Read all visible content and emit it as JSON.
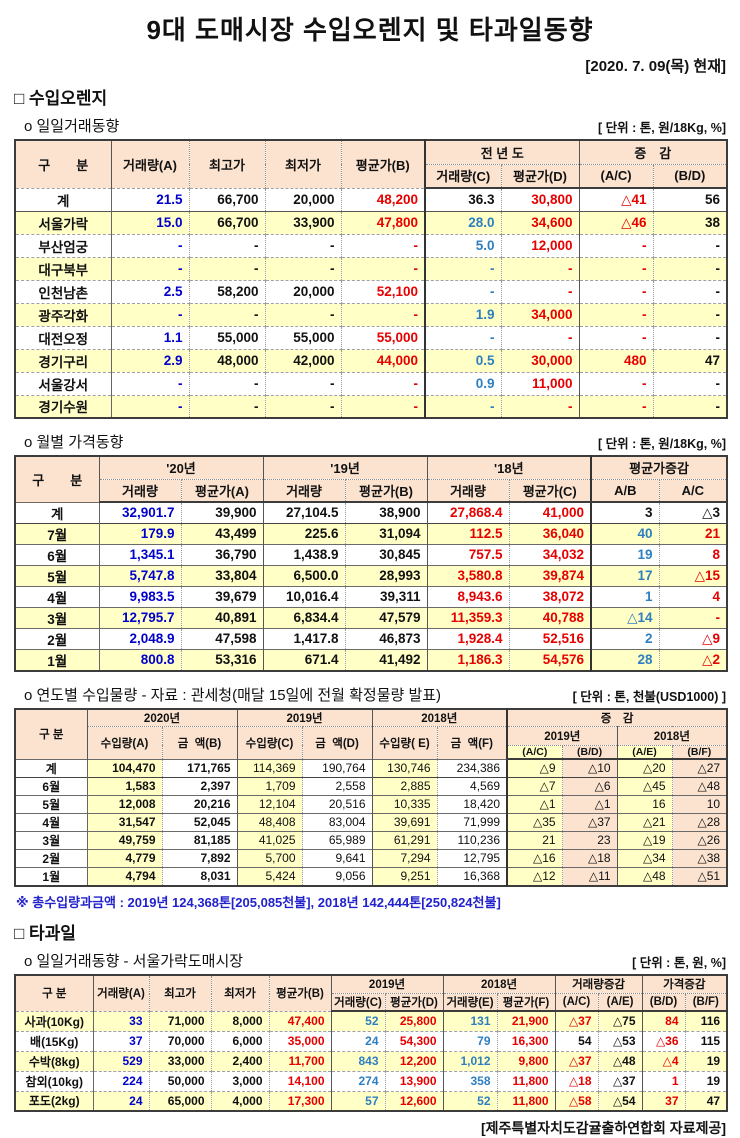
{
  "palette": {
    "blue": "#0000cc",
    "lightblue": "#2e7fc1",
    "red": "#e60000",
    "black": "#111111",
    "note_blue": "#2222cc",
    "header_bg": "#fbe3d0",
    "stripe_bg": "#ffffc6",
    "yellow_bg": "#ffffc6",
    "peach_bg": "#fbe3d0",
    "white_bg": "#ffffff"
  },
  "header": {
    "title": "9대 도매시장 수입오렌지 및 타과일동향",
    "date": "[2020. 7. 09(목) 현재]"
  },
  "sections": {
    "orange_heading": "□ 수입오렌지",
    "daily_label": "o  일일거래동향",
    "daily_unit": "[ 단위 : 톤, 원/18Kg, %]",
    "monthly_label": "o  월별 가격동향",
    "monthly_unit": "[ 단위 : 톤, 원/18Kg, %]",
    "yearly_label": "o  연도별 수입물량 - 자료 : 관세청(매달 15일에 전월 확정물량 발표)",
    "yearly_unit": "[ 단위 : 톤, 천불(USD1000) ]",
    "total_note": "※ 총수입량과금액 : 2019년 124,368톤[205,085천불],  2018년 142,444톤[250,824천불]",
    "fruit_heading": "□ 타과일",
    "fruit_daily_label": "o  일일거래동향 - 서울가락도매시장",
    "fruit_daily_unit": "[ 단위 : 톤, 원, %]",
    "footer": "[제주특별자치도감귤출하연합회 자료제공]"
  },
  "tables": {
    "daily": {
      "headers": {
        "gubun": "구　　분",
        "vol_a": "거래량(A)",
        "high": "최고가",
        "low": "최저가",
        "avg_b": "평균가(B)",
        "prev_year": "전 년 도",
        "vol_c": "거래량(C)",
        "avg_d": "평균가(D)",
        "change": "증　감",
        "ac": "(A/C)",
        "bd": "(B/D)"
      },
      "col_colors": [
        "blue",
        "black",
        "black",
        "red",
        "lightblue",
        "red",
        "red",
        "black"
      ],
      "rows": [
        {
          "label": "계",
          "cells": [
            "21.5",
            "66,700",
            "20,000",
            "48,200",
            "36.3",
            "30,800",
            "△41",
            "56"
          ],
          "color_overrides": {
            "4": "black"
          }
        },
        {
          "label": "서울가락",
          "cells": [
            "15.0",
            "66,700",
            "33,900",
            "47,800",
            "28.0",
            "34,600",
            "△46",
            "38"
          ]
        },
        {
          "label": "부산엄궁",
          "cells": [
            "-",
            "-",
            "-",
            "-",
            "5.0",
            "12,000",
            "-",
            "-"
          ]
        },
        {
          "label": "대구북부",
          "cells": [
            "-",
            "-",
            "-",
            "-",
            "-",
            "-",
            "-",
            "-"
          ]
        },
        {
          "label": "인천남촌",
          "cells": [
            "2.5",
            "58,200",
            "20,000",
            "52,100",
            "-",
            "-",
            "-",
            "-"
          ]
        },
        {
          "label": "광주각화",
          "cells": [
            "-",
            "-",
            "-",
            "-",
            "1.9",
            "34,000",
            "-",
            "-"
          ]
        },
        {
          "label": "대전오정",
          "cells": [
            "1.1",
            "55,000",
            "55,000",
            "55,000",
            "-",
            "-",
            "-",
            "-"
          ]
        },
        {
          "label": "경기구리",
          "cells": [
            "2.9",
            "48,000",
            "42,000",
            "44,000",
            "0.5",
            "30,000",
            "480",
            "47"
          ]
        },
        {
          "label": "서울강서",
          "cells": [
            "-",
            "-",
            "-",
            "-",
            "0.9",
            "11,000",
            "-",
            "-"
          ]
        },
        {
          "label": "경기수원",
          "cells": [
            "-",
            "-",
            "-",
            "-",
            "-",
            "-",
            "-",
            "-"
          ]
        }
      ]
    },
    "monthly": {
      "headers": {
        "gubun": "구　　분",
        "y20": "'20년",
        "y19": "'19년",
        "y18": "'18년",
        "avg_change": "평균가증감",
        "vol20": "거래량",
        "avg_a": "평균가(A)",
        "vol19": "거래량",
        "avg_b": "평균가(B)",
        "vol18": "거래량",
        "avg_c": "평균가(C)",
        "ab": "A/B",
        "ac": "A/C"
      },
      "col_colors": [
        "blue",
        "black",
        "black",
        "black",
        "red",
        "red",
        "lightblue",
        "red"
      ],
      "rows": [
        {
          "label": "계",
          "cells": [
            "32,901.7",
            "39,900",
            "27,104.5",
            "38,900",
            "27,868.4",
            "41,000",
            "3",
            "△3"
          ],
          "color_overrides": {
            "6": "black",
            "7": "black"
          }
        },
        {
          "label": "7월",
          "cells": [
            "179.9",
            "43,499",
            "225.6",
            "31,094",
            "112.5",
            "36,040",
            "40",
            "21"
          ]
        },
        {
          "label": "6월",
          "cells": [
            "1,345.1",
            "36,790",
            "1,438.9",
            "30,845",
            "757.5",
            "34,032",
            "19",
            "8"
          ]
        },
        {
          "label": "5월",
          "cells": [
            "5,747.8",
            "33,804",
            "6,500.0",
            "28,993",
            "3,580.8",
            "39,874",
            "17",
            "△15"
          ]
        },
        {
          "label": "4월",
          "cells": [
            "9,983.5",
            "39,679",
            "10,016.4",
            "39,311",
            "8,943.6",
            "38,072",
            "1",
            "4"
          ]
        },
        {
          "label": "3월",
          "cells": [
            "12,795.7",
            "40,891",
            "6,834.4",
            "47,579",
            "11,359.3",
            "40,788",
            "△14",
            "-"
          ]
        },
        {
          "label": "2월",
          "cells": [
            "2,048.9",
            "47,598",
            "1,417.8",
            "46,873",
            "1,928.4",
            "52,516",
            "2",
            "△9"
          ]
        },
        {
          "label": "1월",
          "cells": [
            "800.8",
            "53,316",
            "671.4",
            "41,492",
            "1,186.3",
            "54,576",
            "28",
            "△2"
          ]
        }
      ]
    },
    "yearly": {
      "headers": {
        "gubun": "구 분",
        "y2020": "2020년",
        "y2019": "2019년",
        "y2018": "2018년",
        "change": "증　감",
        "imp_a": "수입량(A)",
        "amt_b": "금  액(B)",
        "imp_c": "수입량(C)",
        "amt_d": "금  액(D)",
        "imp_e": "수입량( E)",
        "amt_f": "금  액(F)",
        "chg_2019": "2019년",
        "chg_2018": "2018년",
        "ac": "(A/C)",
        "bd": "(B/D)",
        "ae": "(A/E)",
        "bf": "(B/F)"
      },
      "col_colors": [
        "black",
        "black",
        "black",
        "black",
        "black",
        "black",
        "black",
        "black",
        "black",
        "black"
      ],
      "col_bgs": [
        "yellow",
        "white",
        "yellow",
        "white",
        "yellow",
        "white",
        "yellow",
        "peach",
        "yellow",
        "peach"
      ],
      "rows": [
        {
          "label": "계",
          "cells": [
            "104,470",
            "171,765",
            "114,369",
            "190,764",
            "130,746",
            "234,386",
            "△9",
            "△10",
            "△20",
            "△27"
          ]
        },
        {
          "label": "6월",
          "cells": [
            "1,583",
            "2,397",
            "1,709",
            "2,558",
            "2,885",
            "4,569",
            "△7",
            "△6",
            "△45",
            "△48"
          ]
        },
        {
          "label": "5월",
          "cells": [
            "12,008",
            "20,216",
            "12,104",
            "20,516",
            "10,335",
            "18,420",
            "△1",
            "△1",
            "16",
            "10"
          ]
        },
        {
          "label": "4월",
          "cells": [
            "31,547",
            "52,045",
            "48,408",
            "83,004",
            "39,691",
            "71,999",
            "△35",
            "△37",
            "△21",
            "△28"
          ]
        },
        {
          "label": "3월",
          "cells": [
            "49,759",
            "81,185",
            "41,025",
            "65,989",
            "61,291",
            "110,236",
            "21",
            "23",
            "△19",
            "△26"
          ]
        },
        {
          "label": "2월",
          "cells": [
            "4,779",
            "7,892",
            "5,700",
            "9,641",
            "7,294",
            "12,795",
            "△16",
            "△18",
            "△34",
            "△38"
          ]
        },
        {
          "label": "1월",
          "cells": [
            "4,794",
            "8,031",
            "5,424",
            "9,056",
            "9,251",
            "16,368",
            "△12",
            "△11",
            "△48",
            "△51"
          ]
        }
      ]
    },
    "fruit": {
      "headers": {
        "gubun": "구 분",
        "vol_a": "거래량(A)",
        "high": "최고가",
        "low": "최저가",
        "avg_b": "평균가(B)",
        "y2019": "2019년",
        "y2018": "2018년",
        "vol_change": "거래량증감",
        "price_change": "가격증감",
        "vol_c": "거래량(C)",
        "avg_d": "평균가(D)",
        "vol_e": "거래량(E)",
        "avg_f": "평균가(F)",
        "ac": "(A/C)",
        "ae": "(A/E)",
        "bd": "(B/D)",
        "bf": "(B/F)"
      },
      "col_colors": [
        "blue",
        "black",
        "black",
        "red",
        "lightblue",
        "red",
        "lightblue",
        "red",
        "red",
        "black",
        "red",
        "black"
      ],
      "rows": [
        {
          "label": "사과(10Kg)",
          "cells": [
            "33",
            "71,000",
            "8,000",
            "47,400",
            "52",
            "25,800",
            "131",
            "21,900",
            "△37",
            "△75",
            "84",
            "116"
          ]
        },
        {
          "label": "배(15Kg)",
          "cells": [
            "37",
            "70,000",
            "6,000",
            "35,000",
            "24",
            "54,300",
            "79",
            "16,300",
            "54",
            "△53",
            "△36",
            "115"
          ],
          "color_overrides": {
            "8": "black"
          }
        },
        {
          "label": "수박(8kg)",
          "cells": [
            "529",
            "33,000",
            "2,400",
            "11,700",
            "843",
            "12,200",
            "1,012",
            "9,800",
            "△37",
            "△48",
            "△4",
            "19"
          ]
        },
        {
          "label": "참외(10kg)",
          "cells": [
            "224",
            "50,000",
            "3,000",
            "14,100",
            "274",
            "13,900",
            "358",
            "11,800",
            "△18",
            "△37",
            "1",
            "19"
          ]
        },
        {
          "label": "포도(2kg)",
          "cells": [
            "24",
            "65,000",
            "4,000",
            "17,300",
            "57",
            "12,600",
            "52",
            "11,800",
            "△58",
            "△54",
            "37",
            "47"
          ]
        }
      ]
    }
  }
}
